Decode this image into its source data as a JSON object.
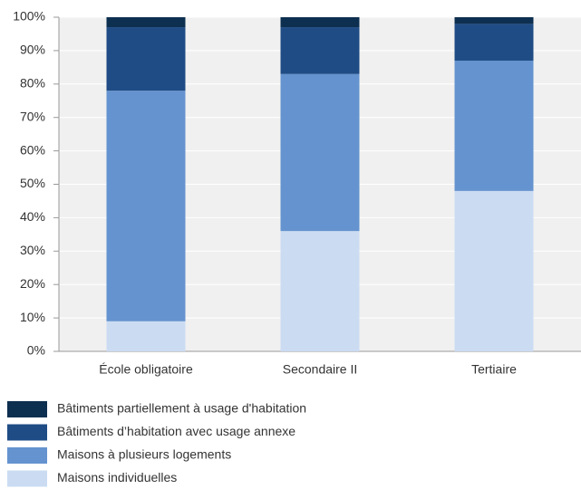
{
  "chart_data": {
    "type": "stacked_bar",
    "categories": [
      "École obligatoire",
      "Secondaire II",
      "Tertiaire"
    ],
    "series": [
      {
        "name": "Bâtiments partiellement à usage d'habitation",
        "color": "#0d2f50",
        "values": [
          3,
          3,
          2
        ]
      },
      {
        "name": "Bâtiments d’habitation avec usage annexe",
        "color": "#1f4c85",
        "values": [
          19,
          14,
          11
        ]
      },
      {
        "name": "Maisons à plusieurs logements",
        "color": "#6593cf",
        "values": [
          69,
          47,
          39
        ]
      },
      {
        "name": "Maisons individuelles",
        "color": "#cbdcf2",
        "values": [
          9,
          36,
          48
        ]
      }
    ],
    "ylim": [
      0,
      100
    ],
    "yticks": [
      {
        "value": 0,
        "label": "0%"
      },
      {
        "value": 10,
        "label": "10%"
      },
      {
        "value": 20,
        "label": "20%"
      },
      {
        "value": 30,
        "label": "30%"
      },
      {
        "value": 40,
        "label": "40%"
      },
      {
        "value": 50,
        "label": "50%"
      },
      {
        "value": 60,
        "label": "60%"
      },
      {
        "value": 70,
        "label": "70%"
      },
      {
        "value": 80,
        "label": "80%"
      },
      {
        "value": 90,
        "label": "90%"
      },
      {
        "value": 100,
        "label": "100%"
      }
    ],
    "grid": true,
    "legend": "bottom"
  }
}
